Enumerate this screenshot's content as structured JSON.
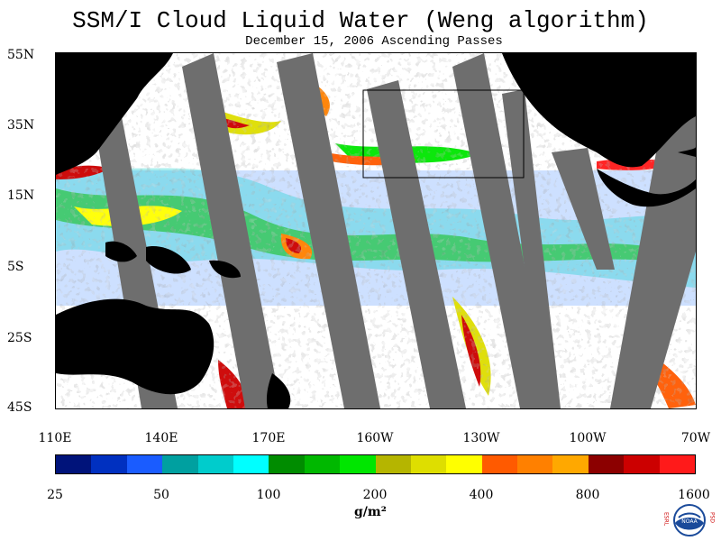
{
  "title": "SSM/I Cloud Liquid Water (Weng algorithm)",
  "subtitle": "December 15, 2006  Ascending Passes",
  "map": {
    "lat_labels": [
      "55N",
      "35N",
      "15N",
      "5S",
      "25S",
      "45S"
    ],
    "lon_labels": [
      "110E",
      "140E",
      "170E",
      "160W",
      "130W",
      "100W",
      "70W"
    ],
    "colors": {
      "land": "#000000",
      "swath_gap": "#6e6e6e",
      "ocean_clear": "#ffffff",
      "box_outline": "#000000"
    }
  },
  "colorbar": {
    "labels": [
      "25",
      "50",
      "100",
      "200",
      "400",
      "800",
      "1600"
    ],
    "unit": "g/m²",
    "colors": [
      "#00137a",
      "#0030c0",
      "#1a5cff",
      "#00a0a0",
      "#00cccc",
      "#00ffff",
      "#008c00",
      "#00b800",
      "#00e600",
      "#b5b500",
      "#dede00",
      "#ffff00",
      "#ff5a00",
      "#ff8000",
      "#ffa800",
      "#8c0000",
      "#cc0000",
      "#ff1a1a"
    ]
  },
  "logo": {
    "left_letters": "ESRL",
    "right_letters": "PSD",
    "center": "NOAA",
    "icon": "noaa-logo"
  }
}
